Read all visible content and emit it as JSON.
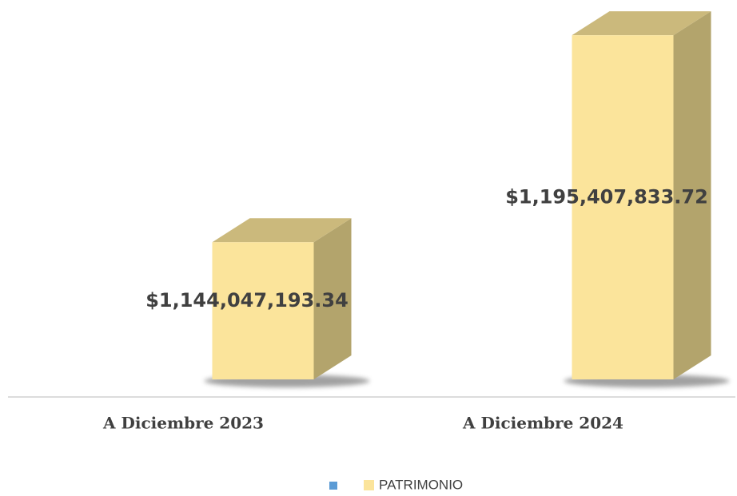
{
  "chart_data": {
    "type": "bar3d",
    "categories": [
      "A Diciembre 2023",
      "A Diciembre 2024"
    ],
    "series": [
      {
        "name": "PATRIMONIO",
        "color": "#fbe49b",
        "values": [
          1144047193.34,
          1195407833.72
        ],
        "value_labels": [
          "$1,144,047,193.34",
          "$1,195,407,833.72"
        ]
      }
    ],
    "ylim": [
      1110000000,
      1200000000
    ]
  }
}
